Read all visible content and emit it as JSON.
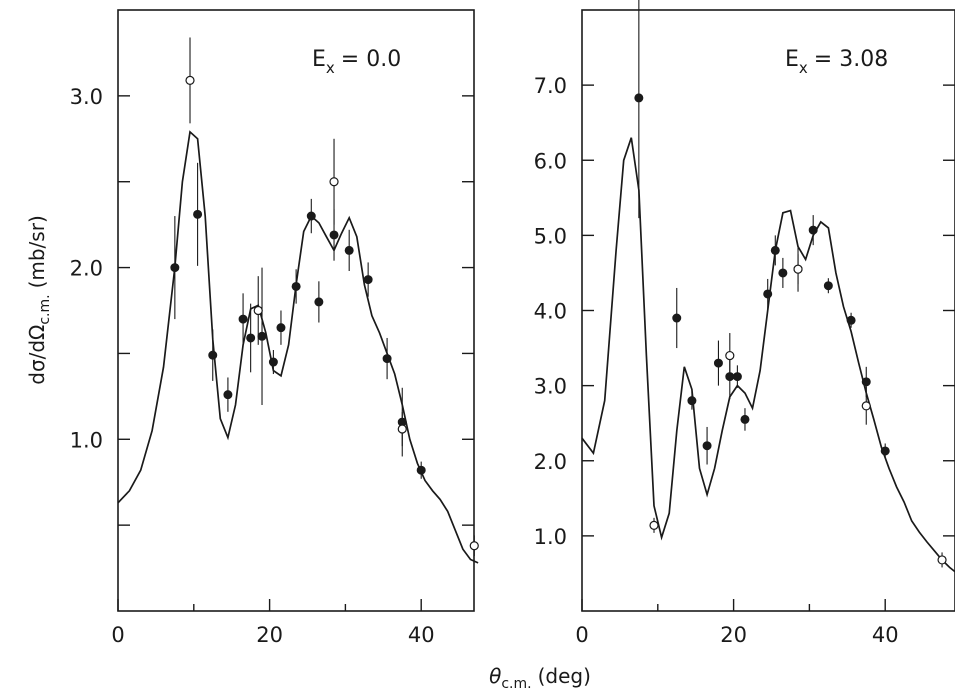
{
  "chart_data": [
    {
      "type": "scatter",
      "annotation": {
        "main": "E",
        "sub": "x",
        "value": "= 0.0"
      },
      "xlim": [
        0,
        50
      ],
      "ylim": [
        0,
        3.5
      ],
      "xticks": [
        0,
        20,
        40
      ],
      "xtick_labels": [
        "0",
        "20",
        "40"
      ],
      "yticks": [
        0.5,
        1.0,
        1.5,
        2.0,
        2.5,
        3.0
      ],
      "ytick_labels": [
        "",
        "1.0",
        "",
        "2.0",
        "",
        "3.0"
      ],
      "series": [
        {
          "marker": "filled",
          "points": [
            {
              "x": 7.5,
              "y": 2.0,
              "err": 0.3
            },
            {
              "x": 10.5,
              "y": 2.31,
              "err": 0.3
            },
            {
              "x": 12.5,
              "y": 1.49,
              "err": 0.15
            },
            {
              "x": 14.5,
              "y": 1.26,
              "err": 0.1
            },
            {
              "x": 16.5,
              "y": 1.7,
              "err": 0.15
            },
            {
              "x": 17.5,
              "y": 1.59,
              "err": 0.2
            },
            {
              "x": 19.0,
              "y": 1.6,
              "err": 0.4
            },
            {
              "x": 20.5,
              "y": 1.45,
              "err": 0.07
            },
            {
              "x": 21.5,
              "y": 1.65,
              "err": 0.1
            },
            {
              "x": 23.5,
              "y": 1.89,
              "err": 0.1
            },
            {
              "x": 25.5,
              "y": 2.3,
              "err": 0.1
            },
            {
              "x": 26.5,
              "y": 1.8,
              "err": 0.12
            },
            {
              "x": 28.5,
              "y": 2.19,
              "err": 0.15
            },
            {
              "x": 30.5,
              "y": 2.1,
              "err": 0.12
            },
            {
              "x": 33.0,
              "y": 1.93,
              "err": 0.1
            },
            {
              "x": 35.5,
              "y": 1.47,
              "err": 0.12
            },
            {
              "x": 37.5,
              "y": 1.1,
              "err": 0.2
            },
            {
              "x": 40.0,
              "y": 0.82,
              "err": 0.05
            }
          ]
        },
        {
          "marker": "open",
          "points": [
            {
              "x": 9.5,
              "y": 3.09,
              "err": 0.25
            },
            {
              "x": 18.5,
              "y": 1.75,
              "err": 0.2
            },
            {
              "x": 28.5,
              "y": 2.5,
              "err": 0.25
            },
            {
              "x": 37.5,
              "y": 1.06,
              "err": 0.1
            },
            {
              "x": 47.0,
              "y": 0.38,
              "err": 0.06
            }
          ]
        }
      ],
      "curve": {
        "x": [
          0,
          1.5,
          3,
          4.5,
          6,
          7.5,
          8.5,
          9.5,
          10.5,
          11.5,
          12.5,
          13.5,
          14.5,
          15.5,
          16.5,
          17.5,
          18.5,
          19.5,
          20.5,
          21.5,
          22.5,
          23.5,
          24.5,
          25.5,
          26.5,
          27.5,
          28.5,
          29.5,
          30.5,
          31.5,
          32.5,
          33.5,
          34.5,
          35.5,
          36.5,
          37.5,
          38.5,
          39.5,
          40.5,
          41.5,
          42.5,
          43.5,
          44.5,
          45.5,
          46.5,
          47.5
        ],
        "y": [
          0.63,
          0.7,
          0.82,
          1.05,
          1.42,
          2.0,
          2.5,
          2.79,
          2.75,
          2.3,
          1.58,
          1.12,
          1.01,
          1.2,
          1.55,
          1.76,
          1.78,
          1.62,
          1.4,
          1.37,
          1.55,
          1.9,
          2.21,
          2.3,
          2.26,
          2.18,
          2.1,
          2.2,
          2.29,
          2.18,
          1.9,
          1.72,
          1.62,
          1.5,
          1.38,
          1.2,
          1.0,
          0.86,
          0.76,
          0.7,
          0.65,
          0.58,
          0.47,
          0.36,
          0.3,
          0.28
        ]
      }
    },
    {
      "type": "scatter",
      "annotation": {
        "main": "E",
        "sub": "x",
        "value": "= 3.08"
      },
      "xlim": [
        0,
        50
      ],
      "ylim": [
        0,
        8.0
      ],
      "xticks": [
        0,
        20,
        40
      ],
      "xtick_labels": [
        "0",
        "20",
        "40"
      ],
      "yticks": [
        1.0,
        2.0,
        3.0,
        4.0,
        5.0,
        6.0,
        7.0
      ],
      "ytick_labels": [
        "1.0",
        "2.0",
        "3.0",
        "4.0",
        "5.0",
        "6.0",
        "7.0"
      ],
      "series": [
        {
          "marker": "filled",
          "points": [
            {
              "x": 7.5,
              "y": 6.83,
              "err": 1.6
            },
            {
              "x": 12.5,
              "y": 3.9,
              "err": 0.4
            },
            {
              "x": 14.5,
              "y": 2.8,
              "err": 0.12
            },
            {
              "x": 16.5,
              "y": 2.2,
              "err": 0.25
            },
            {
              "x": 18.0,
              "y": 3.3,
              "err": 0.3
            },
            {
              "x": 19.5,
              "y": 3.12,
              "err": 0.3
            },
            {
              "x": 20.5,
              "y": 3.12,
              "err": 0.15
            },
            {
              "x": 21.5,
              "y": 2.55,
              "err": 0.15
            },
            {
              "x": 24.5,
              "y": 4.22,
              "err": 0.2
            },
            {
              "x": 25.5,
              "y": 4.8,
              "err": 0.2
            },
            {
              "x": 26.5,
              "y": 4.5,
              "err": 0.2
            },
            {
              "x": 28.5,
              "y": 4.55,
              "err": 0.3
            },
            {
              "x": 30.5,
              "y": 5.07,
              "err": 0.2
            },
            {
              "x": 32.5,
              "y": 4.33,
              "err": 0.1
            },
            {
              "x": 35.5,
              "y": 3.87,
              "err": 0.1
            },
            {
              "x": 37.5,
              "y": 3.05,
              "err": 0.2
            },
            {
              "x": 40.0,
              "y": 2.13,
              "err": 0.1
            }
          ]
        },
        {
          "marker": "open",
          "points": [
            {
              "x": 9.5,
              "y": 1.14,
              "err": 0.1
            },
            {
              "x": 19.5,
              "y": 3.4,
              "err": 0.3
            },
            {
              "x": 28.5,
              "y": 4.55,
              "err": 0.2
            },
            {
              "x": 37.5,
              "y": 2.73,
              "err": 0.25
            },
            {
              "x": 47.5,
              "y": 0.68,
              "err": 0.1
            }
          ]
        }
      ],
      "curve": {
        "x": [
          0,
          1.5,
          3,
          4.5,
          5.5,
          6.5,
          7.5,
          8.5,
          9.5,
          10.5,
          11.5,
          12.5,
          13.5,
          14.5,
          15.5,
          16.5,
          17.5,
          18.5,
          19.5,
          20.5,
          21.5,
          22.5,
          23.5,
          24.5,
          25.5,
          26.5,
          27.5,
          28.5,
          29.5,
          30.5,
          31.5,
          32.5,
          33.5,
          34.5,
          35.5,
          36.5,
          37.5,
          38.5,
          39.5,
          40.5,
          41.5,
          42.5,
          43.5,
          44.5,
          45.5,
          46.5,
          47.5,
          48.5,
          49.5
        ],
        "y": [
          2.3,
          2.1,
          2.8,
          4.8,
          6.0,
          6.3,
          5.6,
          3.4,
          1.4,
          0.98,
          1.3,
          2.4,
          3.25,
          2.95,
          1.9,
          1.55,
          1.9,
          2.4,
          2.85,
          3.0,
          2.9,
          2.7,
          3.2,
          4.0,
          4.8,
          5.3,
          5.33,
          4.85,
          4.68,
          5.0,
          5.18,
          5.1,
          4.5,
          4.05,
          3.72,
          3.3,
          2.9,
          2.55,
          2.18,
          1.9,
          1.65,
          1.45,
          1.2,
          1.05,
          0.92,
          0.8,
          0.68,
          0.58,
          0.5
        ]
      }
    }
  ],
  "axes": {
    "ylabel": "dσ/dΩ",
    "ylabel_sub": "c.m.",
    "ylabel_unit": "(mb/sr)",
    "xlabel": "θ",
    "xlabel_sub": "c.m.",
    "xlabel_unit": "(deg)"
  }
}
